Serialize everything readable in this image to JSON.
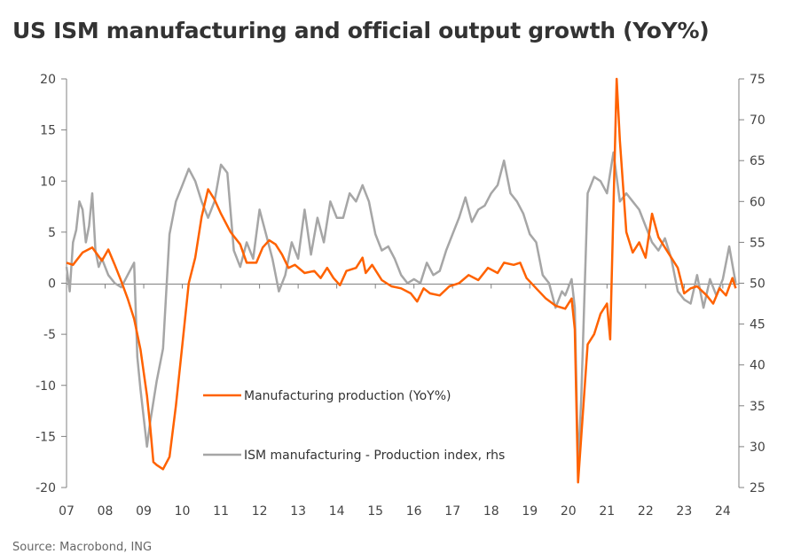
{
  "title": "US ISM manufacturing and official output growth (YoY%)",
  "source": "Source: Macrobond, ING",
  "colors": {
    "manufacturing": "#ff6200",
    "ism": "#a6a6a6",
    "axis": "#808080"
  },
  "chart_data": {
    "type": "line",
    "x_start": "2007-01",
    "x_end": "2024-06",
    "x_tick_labels": [
      "07",
      "08",
      "09",
      "10",
      "11",
      "12",
      "13",
      "14",
      "15",
      "16",
      "17",
      "18",
      "19",
      "20",
      "21",
      "22",
      "23",
      "24"
    ],
    "y_left": {
      "range": [
        -20,
        20
      ],
      "ticks": [
        -20,
        -15,
        -10,
        -5,
        0,
        5,
        10,
        15,
        20
      ]
    },
    "y_right": {
      "range": [
        25,
        75
      ],
      "ticks": [
        25,
        30,
        35,
        40,
        45,
        50,
        55,
        60,
        65,
        70,
        75
      ]
    },
    "grid": false,
    "series": [
      {
        "name": "Manufacturing production (YoY%)",
        "axis": "left",
        "color": "#ff6200",
        "points": [
          [
            "2007-01",
            2.0
          ],
          [
            "2007-03",
            1.8
          ],
          [
            "2007-06",
            3.0
          ],
          [
            "2007-09",
            3.5
          ],
          [
            "2007-12",
            2.2
          ],
          [
            "2008-02",
            3.3
          ],
          [
            "2008-04",
            1.8
          ],
          [
            "2008-06",
            0.2
          ],
          [
            "2008-08",
            -1.5
          ],
          [
            "2008-10",
            -3.5
          ],
          [
            "2008-12",
            -6.5
          ],
          [
            "2009-02",
            -11.0
          ],
          [
            "2009-03",
            -14.0
          ],
          [
            "2009-04",
            -17.5
          ],
          [
            "2009-05",
            -17.8
          ],
          [
            "2009-07",
            -18.2
          ],
          [
            "2009-09",
            -17.0
          ],
          [
            "2009-11",
            -12.0
          ],
          [
            "2010-01",
            -6.0
          ],
          [
            "2010-03",
            0.0
          ],
          [
            "2010-05",
            2.5
          ],
          [
            "2010-07",
            6.5
          ],
          [
            "2010-09",
            9.2
          ],
          [
            "2010-11",
            8.2
          ],
          [
            "2011-01",
            6.8
          ],
          [
            "2011-04",
            5.0
          ],
          [
            "2011-07",
            3.8
          ],
          [
            "2011-09",
            2.0
          ],
          [
            "2011-12",
            2.0
          ],
          [
            "2012-02",
            3.5
          ],
          [
            "2012-04",
            4.2
          ],
          [
            "2012-06",
            3.8
          ],
          [
            "2012-08",
            2.8
          ],
          [
            "2012-10",
            1.5
          ],
          [
            "2012-12",
            1.8
          ],
          [
            "2013-03",
            1.0
          ],
          [
            "2013-06",
            1.2
          ],
          [
            "2013-08",
            0.5
          ],
          [
            "2013-10",
            1.5
          ],
          [
            "2013-12",
            0.5
          ],
          [
            "2014-02",
            -0.2
          ],
          [
            "2014-04",
            1.2
          ],
          [
            "2014-07",
            1.5
          ],
          [
            "2014-09",
            2.5
          ],
          [
            "2014-10",
            1.0
          ],
          [
            "2014-12",
            1.8
          ],
          [
            "2015-03",
            0.3
          ],
          [
            "2015-06",
            -0.3
          ],
          [
            "2015-09",
            -0.5
          ],
          [
            "2015-12",
            -1.0
          ],
          [
            "2016-02",
            -1.8
          ],
          [
            "2016-04",
            -0.5
          ],
          [
            "2016-06",
            -1.0
          ],
          [
            "2016-09",
            -1.2
          ],
          [
            "2016-12",
            -0.3
          ],
          [
            "2017-03",
            0.0
          ],
          [
            "2017-06",
            0.8
          ],
          [
            "2017-09",
            0.3
          ],
          [
            "2017-12",
            1.5
          ],
          [
            "2018-03",
            1.0
          ],
          [
            "2018-05",
            2.0
          ],
          [
            "2018-08",
            1.8
          ],
          [
            "2018-10",
            2.0
          ],
          [
            "2018-12",
            0.5
          ],
          [
            "2019-03",
            -0.5
          ],
          [
            "2019-06",
            -1.5
          ],
          [
            "2019-09",
            -2.2
          ],
          [
            "2019-12",
            -2.5
          ],
          [
            "2020-02",
            -1.5
          ],
          [
            "2020-03",
            -4.5
          ],
          [
            "2020-04",
            -19.5
          ],
          [
            "2020-05",
            -15.0
          ],
          [
            "2020-07",
            -6.0
          ],
          [
            "2020-09",
            -5.0
          ],
          [
            "2020-11",
            -3.0
          ],
          [
            "2021-01",
            -2.0
          ],
          [
            "2021-02",
            -5.5
          ],
          [
            "2021-04",
            20.0
          ],
          [
            "2021-05",
            14.0
          ],
          [
            "2021-07",
            5.0
          ],
          [
            "2021-09",
            3.0
          ],
          [
            "2021-11",
            4.0
          ],
          [
            "2022-01",
            2.5
          ],
          [
            "2022-03",
            6.8
          ],
          [
            "2022-05",
            4.5
          ],
          [
            "2022-08",
            3.0
          ],
          [
            "2022-11",
            1.5
          ],
          [
            "2023-01",
            -1.0
          ],
          [
            "2023-03",
            -0.5
          ],
          [
            "2023-05",
            -0.3
          ],
          [
            "2023-08",
            -1.2
          ],
          [
            "2023-10",
            -2.0
          ],
          [
            "2023-12",
            -0.5
          ],
          [
            "2024-02",
            -1.2
          ],
          [
            "2024-04",
            0.5
          ],
          [
            "2024-05",
            -0.5
          ]
        ]
      },
      {
        "name": "ISM manufacturing - Production index, rhs",
        "axis": "right",
        "color": "#a6a6a6",
        "points": [
          [
            "2007-01",
            52.0
          ],
          [
            "2007-02",
            49.0
          ],
          [
            "2007-03",
            55.0
          ],
          [
            "2007-04",
            56.5
          ],
          [
            "2007-05",
            60.0
          ],
          [
            "2007-06",
            59.0
          ],
          [
            "2007-07",
            55.0
          ],
          [
            "2007-08",
            57.0
          ],
          [
            "2007-09",
            61.0
          ],
          [
            "2007-10",
            54.0
          ],
          [
            "2007-11",
            52.0
          ],
          [
            "2007-12",
            53.0
          ],
          [
            "2008-02",
            51.0
          ],
          [
            "2008-04",
            50.0
          ],
          [
            "2008-06",
            49.5
          ],
          [
            "2008-08",
            51.0
          ],
          [
            "2008-10",
            52.5
          ],
          [
            "2008-11",
            41.0
          ],
          [
            "2008-12",
            37.0
          ],
          [
            "2009-02",
            30.0
          ],
          [
            "2009-03",
            33.0
          ],
          [
            "2009-05",
            38.0
          ],
          [
            "2009-07",
            42.0
          ],
          [
            "2009-09",
            56.0
          ],
          [
            "2009-11",
            60.0
          ],
          [
            "2010-01",
            62.0
          ],
          [
            "2010-03",
            64.0
          ],
          [
            "2010-05",
            62.5
          ],
          [
            "2010-07",
            60.0
          ],
          [
            "2010-09",
            58.0
          ],
          [
            "2010-11",
            60.0
          ],
          [
            "2011-01",
            64.5
          ],
          [
            "2011-03",
            63.5
          ],
          [
            "2011-05",
            54.0
          ],
          [
            "2011-07",
            52.0
          ],
          [
            "2011-09",
            55.0
          ],
          [
            "2011-11",
            53.0
          ],
          [
            "2012-01",
            59.0
          ],
          [
            "2012-03",
            56.0
          ],
          [
            "2012-05",
            53.0
          ],
          [
            "2012-07",
            49.0
          ],
          [
            "2012-09",
            51.0
          ],
          [
            "2012-11",
            55.0
          ],
          [
            "2013-01",
            53.0
          ],
          [
            "2013-03",
            59.0
          ],
          [
            "2013-05",
            53.5
          ],
          [
            "2013-07",
            58.0
          ],
          [
            "2013-09",
            55.0
          ],
          [
            "2013-11",
            60.0
          ],
          [
            "2014-01",
            58.0
          ],
          [
            "2014-03",
            58.0
          ],
          [
            "2014-05",
            61.0
          ],
          [
            "2014-07",
            60.0
          ],
          [
            "2014-09",
            62.0
          ],
          [
            "2014-11",
            60.0
          ],
          [
            "2015-01",
            56.0
          ],
          [
            "2015-03",
            54.0
          ],
          [
            "2015-05",
            54.5
          ],
          [
            "2015-07",
            53.0
          ],
          [
            "2015-09",
            51.0
          ],
          [
            "2015-11",
            50.0
          ],
          [
            "2016-01",
            50.5
          ],
          [
            "2016-03",
            50.0
          ],
          [
            "2016-05",
            52.5
          ],
          [
            "2016-07",
            51.0
          ],
          [
            "2016-09",
            51.5
          ],
          [
            "2016-11",
            54.0
          ],
          [
            "2017-01",
            56.0
          ],
          [
            "2017-03",
            58.0
          ],
          [
            "2017-05",
            60.5
          ],
          [
            "2017-07",
            57.5
          ],
          [
            "2017-09",
            59.0
          ],
          [
            "2017-11",
            59.5
          ],
          [
            "2018-01",
            61.0
          ],
          [
            "2018-03",
            62.0
          ],
          [
            "2018-05",
            65.0
          ],
          [
            "2018-07",
            61.0
          ],
          [
            "2018-09",
            60.0
          ],
          [
            "2018-11",
            58.5
          ],
          [
            "2019-01",
            56.0
          ],
          [
            "2019-03",
            55.0
          ],
          [
            "2019-05",
            51.0
          ],
          [
            "2019-07",
            50.0
          ],
          [
            "2019-09",
            47.0
          ],
          [
            "2019-11",
            49.0
          ],
          [
            "2019-12",
            48.5
          ],
          [
            "2020-02",
            50.5
          ],
          [
            "2020-03",
            47.0
          ],
          [
            "2020-04",
            27.5
          ],
          [
            "2020-05",
            36.0
          ],
          [
            "2020-07",
            61.0
          ],
          [
            "2020-09",
            63.0
          ],
          [
            "2020-11",
            62.5
          ],
          [
            "2021-01",
            61.0
          ],
          [
            "2021-03",
            66.0
          ],
          [
            "2021-05",
            60.0
          ],
          [
            "2021-07",
            61.0
          ],
          [
            "2021-09",
            60.0
          ],
          [
            "2021-11",
            59.0
          ],
          [
            "2022-01",
            57.0
          ],
          [
            "2022-03",
            55.0
          ],
          [
            "2022-05",
            54.0
          ],
          [
            "2022-07",
            55.5
          ],
          [
            "2022-09",
            53.0
          ],
          [
            "2022-11",
            49.0
          ],
          [
            "2023-01",
            48.0
          ],
          [
            "2023-03",
            47.5
          ],
          [
            "2023-05",
            51.0
          ],
          [
            "2023-07",
            47.0
          ],
          [
            "2023-09",
            50.5
          ],
          [
            "2023-11",
            48.5
          ],
          [
            "2024-01",
            50.5
          ],
          [
            "2024-03",
            54.5
          ],
          [
            "2024-05",
            50.0
          ]
        ]
      }
    ]
  }
}
